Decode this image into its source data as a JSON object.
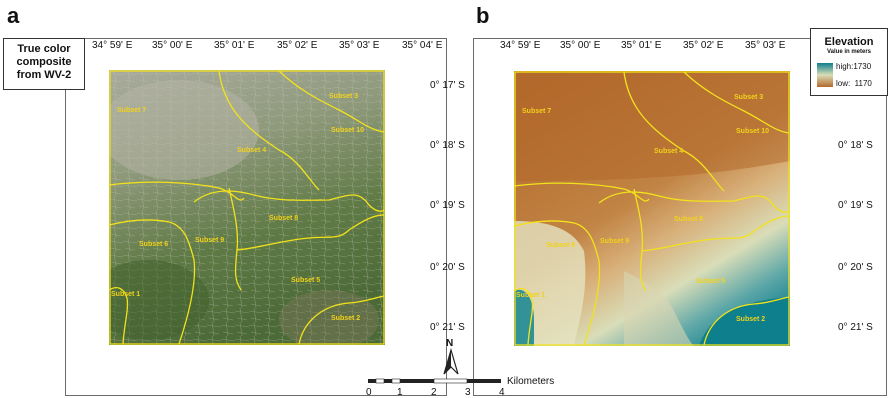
{
  "panels": {
    "a": {
      "letter": "a",
      "legend_text": "True color composite from WV-2",
      "top_coords": [
        "34° 59' E",
        "35° 00' E",
        "35° 01' E",
        "35° 02' E",
        "35° 03' E",
        "35° 04' E"
      ],
      "right_coords": [
        "0° 17' S",
        "0° 18' S",
        "0° 19' S",
        "0° 20' S",
        "0° 21' S"
      ],
      "subsets": [
        "Subset 7",
        "Subset 3",
        "Subset 4",
        "Subset 10",
        "Subset 8",
        "Subset 6",
        "Subset 9",
        "Subset 5",
        "Subset 1",
        "Subset 2"
      ]
    },
    "b": {
      "letter": "b",
      "legend_title": "Elevation",
      "legend_subtitle": "Value in meters",
      "legend_high": "high:1730",
      "legend_low": "low:  1170",
      "top_coords": [
        "34° 59' E",
        "35° 00' E",
        "35° 01' E",
        "35° 02' E",
        "35° 03' E"
      ],
      "right_coords": [
        "0° 18' S",
        "0° 19' S",
        "0° 20' S",
        "0° 21' S"
      ],
      "subsets": [
        "Subset 7",
        "Subset 3",
        "Subset 4",
        "Subset 10",
        "Subset 8",
        "Subset 6",
        "Subset 9",
        "Subset 5",
        "Subset 1",
        "Subset 2"
      ]
    }
  },
  "north_arrow": {
    "label": "N"
  },
  "scale_bar": {
    "ticks": [
      "0",
      "1",
      "2",
      "3",
      "4"
    ],
    "unit": "Kilometers"
  },
  "colors": {
    "boundary": "#f2e21b",
    "elev_high": "#0e7f8c",
    "elev_low": "#b3692b"
  }
}
